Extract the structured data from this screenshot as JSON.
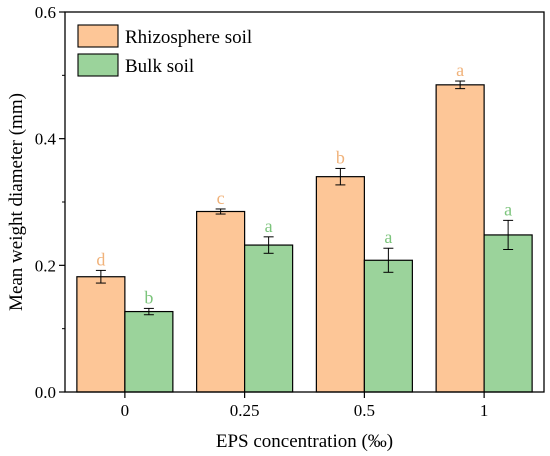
{
  "chart_data": {
    "type": "bar",
    "title": "",
    "xlabel": "EPS concentration (‰)",
    "ylabel": "Mean weight diameter (mm)",
    "ylim": [
      0,
      0.6
    ],
    "yticks": [
      "0.0",
      "0.2",
      "0.4",
      "0.6"
    ],
    "categories": [
      "0",
      "0.25",
      "0.5",
      "1"
    ],
    "legend_position": "top-left",
    "grid": false,
    "series": [
      {
        "name": "Rhizosphere soil",
        "color": "#FDC697",
        "values": [
          0.182,
          0.285,
          0.34,
          0.485
        ],
        "errors": [
          0.01,
          0.004,
          0.013,
          0.006
        ],
        "significance": [
          "d",
          "c",
          "b",
          "a"
        ],
        "label_color": "#F0B27A"
      },
      {
        "name": "Bulk soil",
        "color": "#9BD39B",
        "values": [
          0.127,
          0.232,
          0.208,
          0.248
        ],
        "errors": [
          0.005,
          0.013,
          0.019,
          0.023
        ],
        "significance": [
          "b",
          "a",
          "a",
          "a"
        ],
        "label_color": "#7CC47C"
      }
    ]
  }
}
